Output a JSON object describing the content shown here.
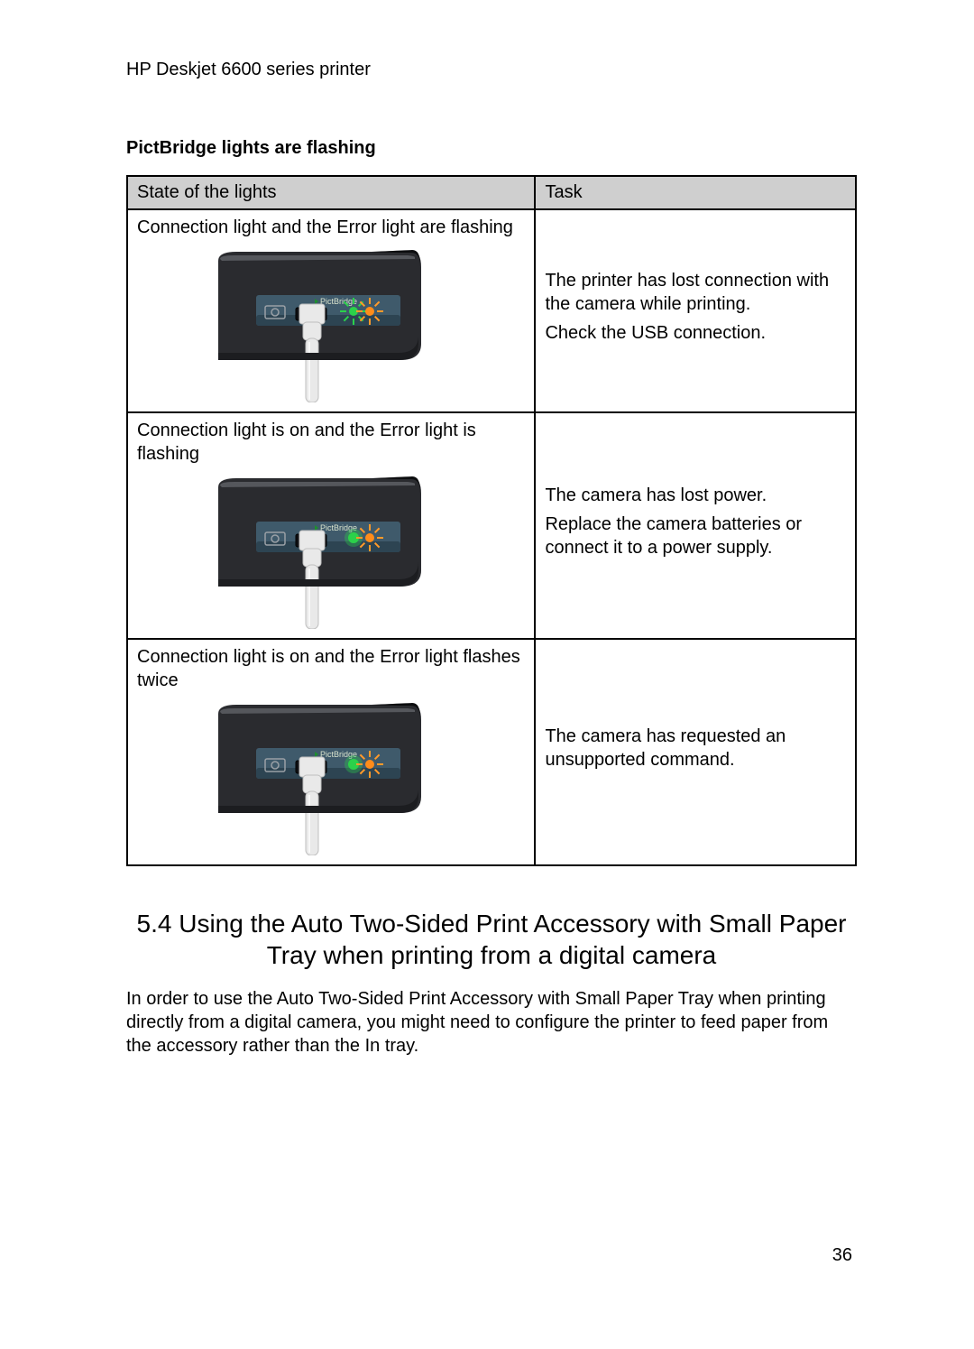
{
  "header": "HP Deskjet 6600 series printer",
  "subheading": "PictBridge lights are flashing",
  "table": {
    "columns": [
      "State of the lights",
      "Task"
    ],
    "rows": [
      {
        "state": "Connection light and the Error light are flashing",
        "task_lines": [
          "The printer has lost connection with the camera while printing.",
          "Check the USB connection."
        ],
        "diagram": {
          "conn_green_on": false,
          "conn_green_flash": true,
          "err_orange_flash": true
        }
      },
      {
        "state": "Connection light is on and the Error light is flashing",
        "task_lines": [
          "The camera has lost power.",
          "Replace the camera batteries or connect it to a power supply."
        ],
        "diagram": {
          "conn_green_on": true,
          "conn_green_flash": false,
          "err_orange_flash": true
        }
      },
      {
        "state": "Connection light is on and the Error light flashes twice",
        "task_lines": [
          "The camera has requested an unsupported command."
        ],
        "diagram": {
          "conn_green_on": true,
          "conn_green_flash": false,
          "err_orange_flash": true
        }
      }
    ]
  },
  "section": {
    "number": "5.4",
    "title": "Using the Auto Two-Sided Print Accessory with Small Paper Tray when printing from a digital camera"
  },
  "paragraph": "In order to use the Auto Two-Sided Print Accessory with Small Paper Tray when printing directly from a digital camera, you might need to configure the printer to feed paper from the accessory rather than the In tray.",
  "page_number": "36",
  "colors": {
    "printer_body": "#2a2b2f",
    "printer_body_dark": "#1c1d20",
    "panel_strip": "#3f5a6b",
    "panel_strip_dark": "#2d4452",
    "cable": "#e9e9e9",
    "cable_shadow": "#bfbfbf",
    "led_green": "#2bd14a",
    "led_orange": "#ff8c1a",
    "flash_ray": "#ff9a2a",
    "label_green": "#1e8f2e",
    "camera_icon": "#9aa0a6"
  }
}
